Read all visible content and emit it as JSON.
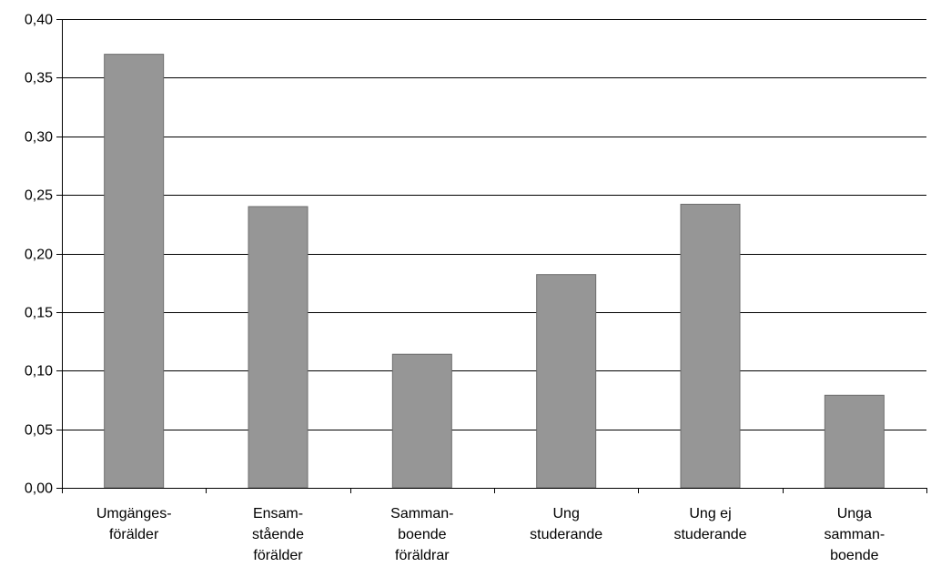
{
  "chart_data": {
    "type": "bar",
    "categories": [
      [
        "Umgänges-",
        "förälder"
      ],
      [
        "Ensam-",
        "stående",
        "förälder"
      ],
      [
        "Samman-",
        "boende",
        "föräldrar"
      ],
      [
        "Ung",
        "studerande"
      ],
      [
        "Ung ej",
        "studerande"
      ],
      [
        "Unga",
        "samman-",
        "boende"
      ]
    ],
    "values": [
      0.37,
      0.24,
      0.114,
      0.182,
      0.242,
      0.079
    ],
    "yticks": [
      "0,00",
      "0,05",
      "0,10",
      "0,15",
      "0,20",
      "0,25",
      "0,30",
      "0,35",
      "0,40"
    ],
    "ylim": [
      0,
      0.4
    ],
    "grid": true,
    "colors": {
      "bar_fill": "#969696",
      "bar_stroke": "#6e6e6e",
      "grid": "#000000",
      "axis": "#000000"
    }
  }
}
